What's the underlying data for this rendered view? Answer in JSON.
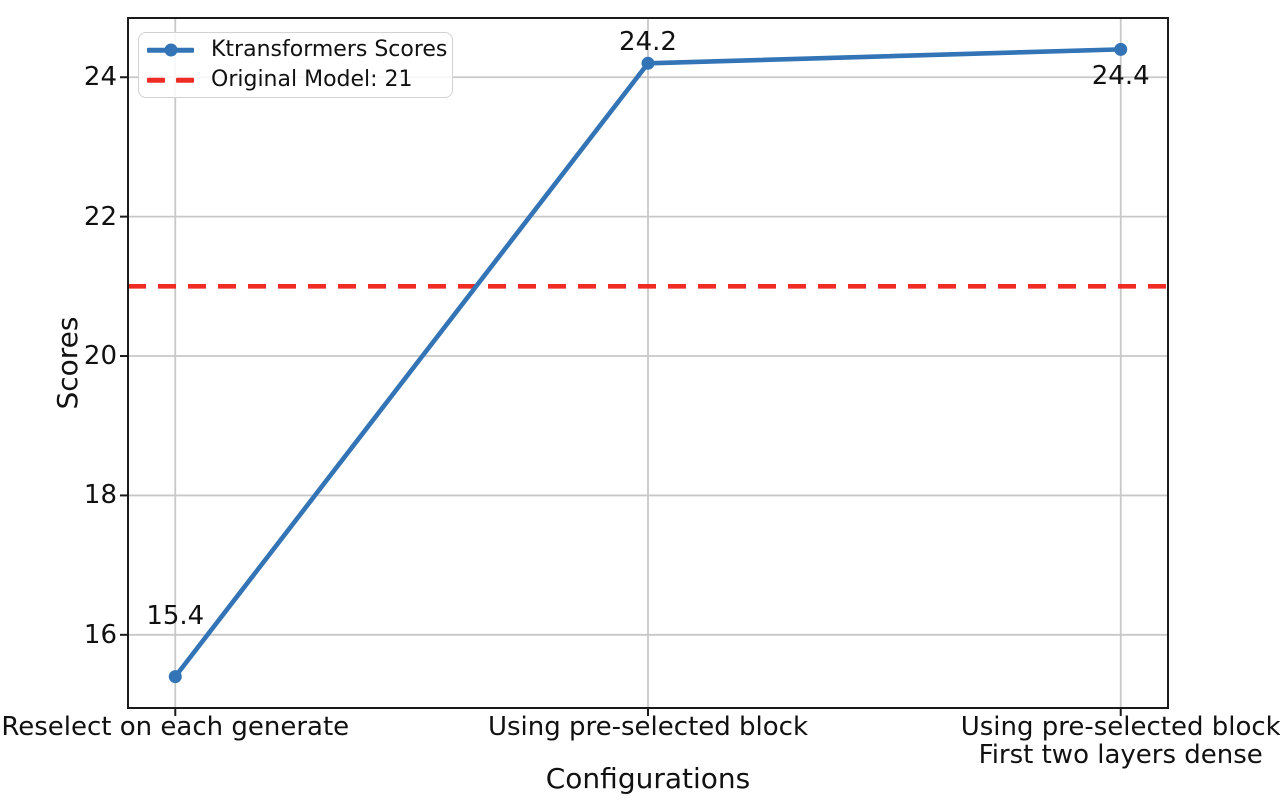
{
  "chart_data": {
    "type": "line",
    "title": "",
    "xlabel": "Configurations",
    "ylabel": "Scores",
    "categories": [
      "Reselect on each generate",
      "Using pre-selected block",
      "Using pre-selected block\nFirst two layers dense"
    ],
    "series": [
      {
        "name": "Ktransformers Scores",
        "values": [
          15.4,
          24.2,
          24.4
        ],
        "color": "#3274b5",
        "marker": "circle",
        "point_labels": [
          "15.4",
          "24.2",
          "24.4"
        ]
      }
    ],
    "reference_line": {
      "label": "Original Model: 21",
      "value": 21,
      "color": "#ee2c23",
      "style": "dashed"
    },
    "yticks": [
      16,
      18,
      20,
      22,
      24
    ],
    "ylim": [
      14.95,
      24.85
    ],
    "xlim": [
      -0.1,
      2.1
    ],
    "grid": true,
    "legend_position": "upper left"
  }
}
